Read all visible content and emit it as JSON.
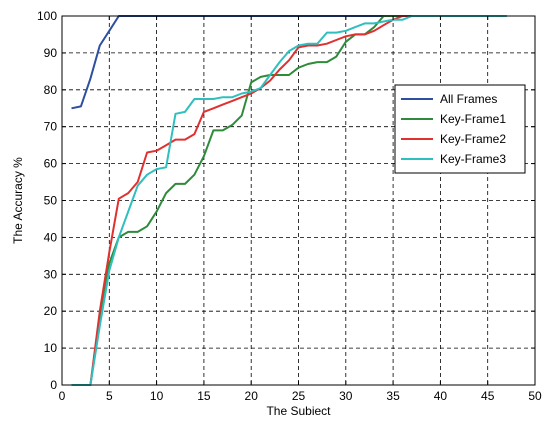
{
  "chart_data": {
    "type": "line",
    "title": "",
    "xlabel": "The Subiect",
    "ylabel": "The Accuracy %",
    "xlim": [
      0,
      50
    ],
    "ylim": [
      0,
      100
    ],
    "xticks": [
      0,
      5,
      10,
      15,
      20,
      25,
      30,
      35,
      40,
      45,
      50
    ],
    "yticks": [
      0,
      10,
      20,
      30,
      40,
      50,
      60,
      70,
      80,
      90,
      100
    ],
    "grid": true,
    "legend_position": "right",
    "series": [
      {
        "name": "All Frames",
        "color": "#2E4FA0",
        "x": [
          1,
          2,
          3,
          4,
          5,
          6,
          7,
          10,
          15,
          20,
          25,
          30,
          35,
          40,
          45,
          47
        ],
        "y": [
          75,
          75.5,
          83,
          92,
          96,
          100,
          100,
          100,
          100,
          100,
          100,
          100,
          100,
          100,
          100,
          100
        ]
      },
      {
        "name": "Key-Frame1",
        "color": "#2E8B3A",
        "x": [
          1,
          2,
          3,
          4,
          5,
          6,
          7,
          8,
          9,
          10,
          11,
          12,
          13,
          14,
          15,
          16,
          17,
          18,
          19,
          20,
          21,
          22,
          23,
          24,
          25,
          26,
          27,
          28,
          29,
          30,
          31,
          32,
          33,
          34,
          35,
          36,
          37,
          38,
          40,
          45,
          47
        ],
        "y": [
          0,
          0,
          0,
          17,
          33,
          40,
          41.5,
          41.5,
          43,
          47,
          52,
          54.5,
          54.5,
          57,
          62,
          69,
          69,
          70.5,
          73,
          82,
          83.5,
          84,
          84,
          84,
          86,
          87,
          87.5,
          87.5,
          89,
          93,
          95,
          95,
          97,
          100,
          100,
          100,
          100,
          100,
          100,
          100,
          100
        ]
      },
      {
        "name": "Key-Frame2",
        "color": "#E03030",
        "x": [
          1,
          2,
          3,
          4,
          5,
          6,
          7,
          8,
          9,
          10,
          11,
          12,
          13,
          14,
          15,
          16,
          17,
          18,
          19,
          20,
          21,
          22,
          23,
          24,
          25,
          26,
          27,
          28,
          29,
          30,
          31,
          32,
          33,
          34,
          35,
          36,
          37,
          38,
          40,
          45,
          47
        ],
        "y": [
          0,
          0,
          0,
          20,
          36,
          50.5,
          52,
          55,
          63,
          63.5,
          65,
          66.5,
          66.5,
          68,
          74,
          75,
          76,
          77,
          78,
          79,
          80.5,
          82.5,
          85.5,
          88,
          91.5,
          92,
          92,
          92.5,
          93.5,
          94.5,
          95,
          95,
          96,
          97.5,
          99,
          100,
          100,
          100,
          100,
          100,
          100
        ]
      },
      {
        "name": "Key-Frame3",
        "color": "#30BFBF",
        "x": [
          1,
          2,
          3,
          4,
          5,
          6,
          7,
          8,
          9,
          10,
          11,
          12,
          13,
          14,
          15,
          16,
          17,
          18,
          19,
          20,
          21,
          22,
          23,
          24,
          25,
          26,
          27,
          28,
          29,
          30,
          31,
          32,
          33,
          34,
          35,
          36,
          37,
          38,
          40,
          45,
          47
        ],
        "y": [
          0,
          0,
          0,
          16,
          31,
          40,
          47,
          54,
          57,
          58.5,
          59,
          73.5,
          74,
          77.5,
          77.5,
          77.5,
          78,
          78,
          79,
          79.5,
          80.5,
          84,
          87.5,
          90.5,
          92,
          92.5,
          92.5,
          95.5,
          95.5,
          96,
          97,
          98,
          98,
          98.5,
          99,
          99,
          100,
          100,
          100,
          100,
          100
        ]
      }
    ]
  }
}
